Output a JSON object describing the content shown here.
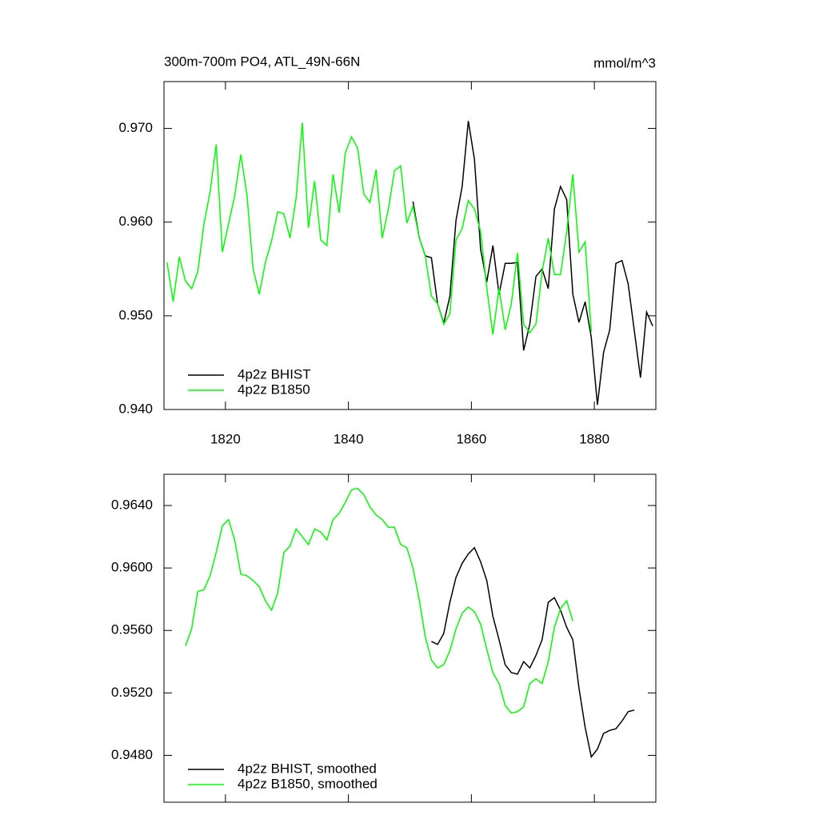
{
  "chart_data": [
    {
      "type": "line",
      "title": "300m-700m PO4, ATL_49N-66N",
      "units": "mmol/m^3",
      "xlim": [
        1810,
        1890
      ],
      "xticks": [
        1820,
        1840,
        1860,
        1880
      ],
      "ylim": [
        0.94,
        0.975
      ],
      "yticks": [
        {
          "value": 0.94,
          "label": "0.940"
        },
        {
          "value": 0.95,
          "label": "0.950"
        },
        {
          "value": 0.96,
          "label": "0.960"
        },
        {
          "value": 0.97,
          "label": "0.970"
        }
      ],
      "series": [
        {
          "name": "4p2z BHIST",
          "color": "#000000",
          "x": [
            1850.5,
            1851.5,
            1852.5,
            1853.5,
            1854.5,
            1855.5,
            1856.5,
            1857.5,
            1858.5,
            1859.5,
            1860.5,
            1861.5,
            1862.5,
            1863.5,
            1864.5,
            1865.5,
            1866.5,
            1867.5,
            1868.5,
            1869.5,
            1870.5,
            1871.5,
            1872.5,
            1873.5,
            1874.5,
            1875.5,
            1876.5,
            1877.5,
            1878.5,
            1879.5,
            1880.5,
            1881.5,
            1882.5,
            1883.5,
            1884.5,
            1885.5,
            1886.5,
            1887.5,
            1888.5,
            1889.5
          ],
          "values": [
            0.9622,
            0.9584,
            0.9564,
            0.9562,
            0.9513,
            0.9492,
            0.9521,
            0.9602,
            0.9638,
            0.9708,
            0.9667,
            0.9571,
            0.9536,
            0.9575,
            0.9523,
            0.9556,
            0.9556,
            0.9557,
            0.9463,
            0.9491,
            0.9542,
            0.955,
            0.9529,
            0.9614,
            0.9638,
            0.9624,
            0.9523,
            0.9493,
            0.9515,
            0.9477,
            0.9405,
            0.9461,
            0.9485,
            0.9556,
            0.9559,
            0.9534,
            0.9484,
            0.9434,
            0.9504,
            0.9489
          ]
        },
        {
          "name": "4p2z B1850",
          "color": "#00ff00",
          "x": [
            1810.5,
            1811.5,
            1812.5,
            1813.5,
            1814.5,
            1815.5,
            1816.5,
            1817.5,
            1818.5,
            1819.5,
            1820.5,
            1821.5,
            1822.5,
            1823.5,
            1824.5,
            1825.5,
            1826.5,
            1827.5,
            1828.5,
            1829.5,
            1830.5,
            1831.5,
            1832.5,
            1833.5,
            1834.5,
            1835.5,
            1836.5,
            1837.5,
            1838.5,
            1839.5,
            1840.5,
            1841.5,
            1842.5,
            1843.5,
            1844.5,
            1845.5,
            1846.5,
            1847.5,
            1848.5,
            1849.5,
            1850.5,
            1851.5,
            1852.5,
            1853.5,
            1854.5,
            1855.5,
            1856.5,
            1857.5,
            1858.5,
            1859.5,
            1860.5,
            1861.5,
            1862.5,
            1863.5,
            1864.5,
            1865.5,
            1866.5,
            1867.5,
            1868.5,
            1869.5,
            1870.5,
            1871.5,
            1872.5,
            1873.5,
            1874.5,
            1875.5,
            1876.5,
            1877.5,
            1878.5,
            1879.5
          ],
          "values": [
            0.9557,
            0.9515,
            0.9563,
            0.9537,
            0.9529,
            0.9547,
            0.9598,
            0.9632,
            0.9683,
            0.9568,
            0.9598,
            0.9628,
            0.9672,
            0.9629,
            0.955,
            0.9523,
            0.9557,
            0.958,
            0.9611,
            0.9609,
            0.9583,
            0.9626,
            0.9706,
            0.9594,
            0.9644,
            0.9581,
            0.9575,
            0.9651,
            0.961,
            0.9674,
            0.9691,
            0.9679,
            0.963,
            0.9621,
            0.9656,
            0.9583,
            0.9614,
            0.9655,
            0.966,
            0.9599,
            0.9617,
            0.9584,
            0.9564,
            0.9521,
            0.9513,
            0.9491,
            0.9502,
            0.9581,
            0.9593,
            0.9623,
            0.9614,
            0.959,
            0.953,
            0.948,
            0.953,
            0.9485,
            0.9513,
            0.9567,
            0.9491,
            0.9482,
            0.9491,
            0.9547,
            0.9583,
            0.9544,
            0.9544,
            0.959,
            0.9651,
            0.9568,
            0.9579,
            0.9483
          ]
        }
      ]
    },
    {
      "type": "line",
      "xlim": [
        1810,
        1890
      ],
      "xticks": [
        1820,
        1840,
        1860,
        1880
      ],
      "ylim": [
        0.945,
        0.966
      ],
      "yticks": [
        {
          "value": 0.948,
          "label": "0.9480"
        },
        {
          "value": 0.952,
          "label": "0.9520"
        },
        {
          "value": 0.956,
          "label": "0.9560"
        },
        {
          "value": 0.96,
          "label": "0.9600"
        },
        {
          "value": 0.964,
          "label": "0.9640"
        }
      ],
      "series": [
        {
          "name": "4p2z BHIST, smoothed",
          "color": "#000000",
          "x": [
            1853.5,
            1854.5,
            1855.5,
            1856.5,
            1857.5,
            1858.5,
            1859.5,
            1860.5,
            1861.5,
            1862.5,
            1863.5,
            1864.5,
            1865.5,
            1866.5,
            1867.5,
            1868.5,
            1869.5,
            1870.5,
            1871.5,
            1872.5,
            1873.5,
            1874.5,
            1875.5,
            1876.5,
            1877.5,
            1878.5,
            1879.5,
            1880.5,
            1881.5,
            1882.5,
            1883.5,
            1884.5,
            1885.5,
            1886.5
          ],
          "values": [
            0.9553,
            0.9551,
            0.9558,
            0.9578,
            0.9594,
            0.9603,
            0.9609,
            0.9613,
            0.9604,
            0.9592,
            0.9569,
            0.9554,
            0.9538,
            0.9533,
            0.9532,
            0.954,
            0.9536,
            0.9544,
            0.9554,
            0.9578,
            0.9581,
            0.9573,
            0.9562,
            0.9554,
            0.9523,
            0.9498,
            0.9479,
            0.9484,
            0.9494,
            0.9496,
            0.9497,
            0.9502,
            0.9508,
            0.9509
          ]
        },
        {
          "name": "4p2z B1850, smoothed",
          "color": "#00ff00",
          "x": [
            1813.5,
            1814.5,
            1815.5,
            1816.5,
            1817.5,
            1818.5,
            1819.5,
            1820.5,
            1821.5,
            1822.5,
            1823.5,
            1824.5,
            1825.5,
            1826.5,
            1827.5,
            1828.5,
            1829.5,
            1830.5,
            1831.5,
            1832.5,
            1833.5,
            1834.5,
            1835.5,
            1836.5,
            1837.5,
            1838.5,
            1839.5,
            1840.5,
            1841.5,
            1842.5,
            1843.5,
            1844.5,
            1845.5,
            1846.5,
            1847.5,
            1848.5,
            1849.5,
            1850.5,
            1851.5,
            1852.5,
            1853.5,
            1854.5,
            1855.5,
            1856.5,
            1857.5,
            1858.5,
            1859.5,
            1860.5,
            1861.5,
            1862.5,
            1863.5,
            1864.5,
            1865.5,
            1866.5,
            1867.5,
            1868.5,
            1869.5,
            1870.5,
            1871.5,
            1872.5,
            1873.5,
            1874.5,
            1875.5,
            1876.5
          ],
          "values": [
            0.955,
            0.9561,
            0.9585,
            0.9586,
            0.9595,
            0.961,
            0.9627,
            0.9631,
            0.9618,
            0.9596,
            0.9595,
            0.9592,
            0.9588,
            0.9579,
            0.9573,
            0.9584,
            0.961,
            0.9614,
            0.9625,
            0.962,
            0.9615,
            0.9625,
            0.9623,
            0.9618,
            0.9631,
            0.9635,
            0.9642,
            0.965,
            0.9651,
            0.9647,
            0.9639,
            0.9634,
            0.9631,
            0.9626,
            0.9626,
            0.9615,
            0.9613,
            0.96,
            0.958,
            0.9556,
            0.9541,
            0.9536,
            0.9538,
            0.9547,
            0.9561,
            0.9571,
            0.9575,
            0.9572,
            0.9564,
            0.9548,
            0.9533,
            0.9526,
            0.9512,
            0.9507,
            0.9508,
            0.9511,
            0.9526,
            0.9529,
            0.9526,
            0.954,
            0.9562,
            0.9574,
            0.9579,
            0.9566
          ]
        }
      ]
    }
  ]
}
